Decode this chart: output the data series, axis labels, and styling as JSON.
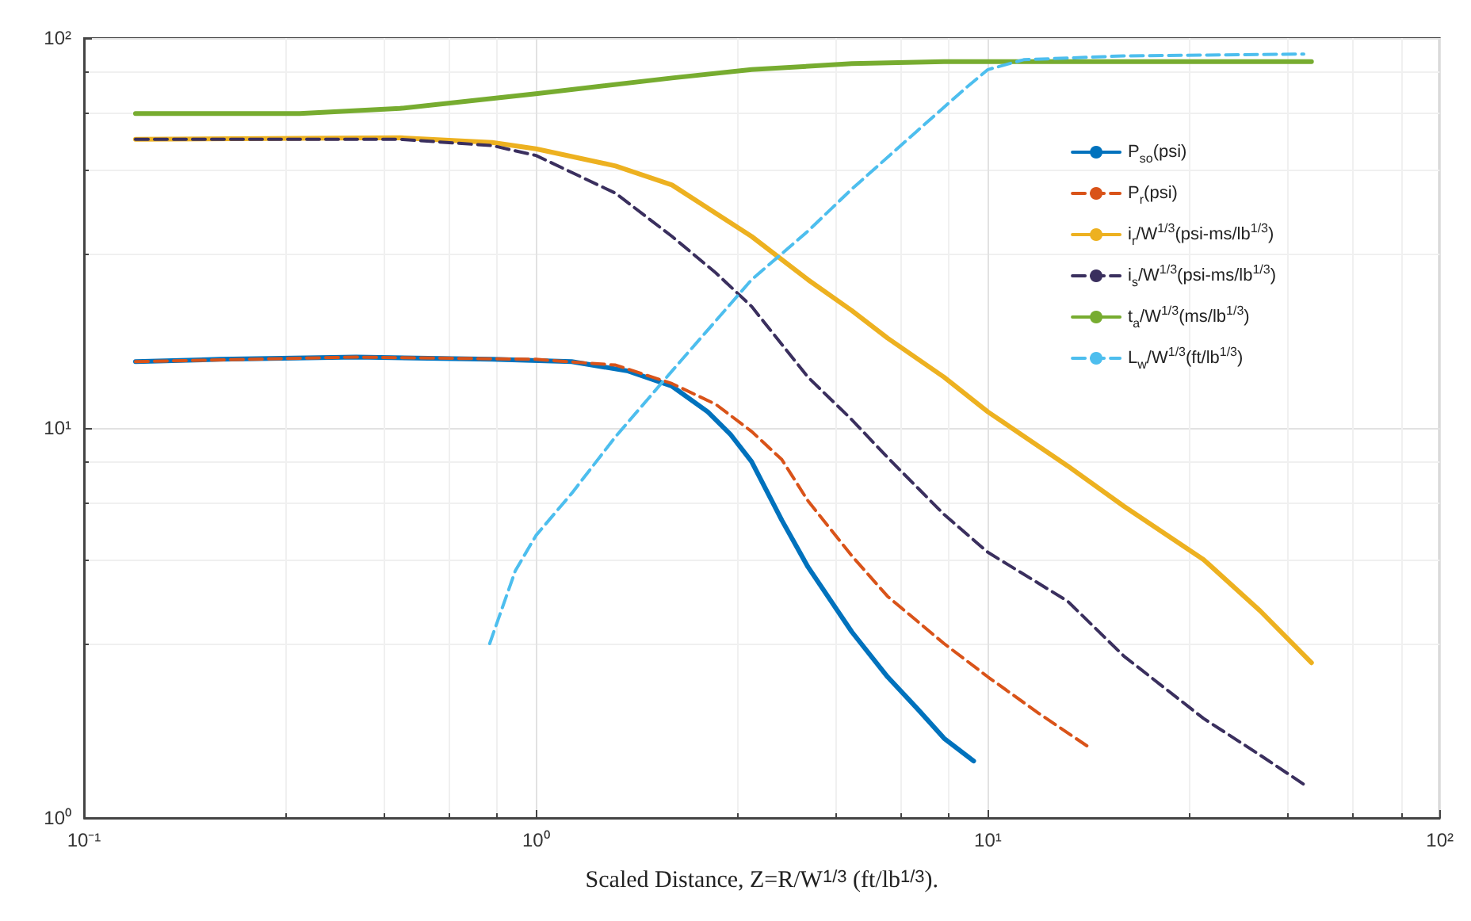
{
  "chart_data": {
    "type": "line",
    "xlabel": "Scaled Distance, Z=R/W$^{1/3}$ (ft/lb$^{1/3}$).",
    "log": "xy",
    "grid": true,
    "legend": "top right",
    "marker": "none",
    "xlim": [
      0.1,
      100
    ],
    "ylim": [
      1,
      100
    ],
    "xticks": [
      {
        "value": 0.1,
        "label": "10⁻¹"
      },
      {
        "value": 1,
        "label": "10⁰"
      },
      {
        "value": 10,
        "label": "10¹"
      },
      {
        "value": 100,
        "label": "10²"
      }
    ],
    "yticks": [
      {
        "value": 1,
        "label": "10⁰"
      },
      {
        "value": 10,
        "label": "10¹"
      },
      {
        "value": 100,
        "label": "10²"
      }
    ],
    "series": [
      {
        "name": "P$_{so}$(psi)",
        "color": "#0072bd",
        "line_style": "solid",
        "x": [
          0.13,
          0.2,
          0.4,
          0.8,
          1.2,
          1.6,
          2,
          2.4,
          2.7,
          3,
          3.5,
          4,
          5,
          6,
          7,
          8,
          9.3
        ],
        "values": [
          14.8,
          15,
          15.2,
          15,
          14.8,
          14,
          12.8,
          11,
          9.6,
          8.2,
          5.8,
          4.4,
          3,
          2.3,
          1.9,
          1.6,
          1.4
        ]
      },
      {
        "name": "P$_{r}$(psi)",
        "color": "#d95319",
        "line_style": "dashed",
        "x": [
          0.13,
          0.4,
          1,
          1.5,
          2,
          2.5,
          3,
          3.5,
          4,
          5,
          6,
          8,
          10,
          13,
          17
        ],
        "values": [
          14.8,
          15.2,
          15,
          14.5,
          13,
          11.5,
          9.8,
          8.3,
          6.5,
          4.7,
          3.7,
          2.8,
          2.3,
          1.85,
          1.5
        ]
      },
      {
        "name": "i$_{r}$/W$^{1/3}$(psi-ms/lb$^{1/3}$)",
        "color": "#edb120",
        "line_style": "solid",
        "x": [
          0.13,
          0.5,
          0.8,
          1,
          1.5,
          2,
          3,
          4,
          5,
          6,
          8,
          10,
          15,
          20,
          30,
          40,
          52
        ],
        "values": [
          55,
          55.5,
          54,
          52,
          47,
          42,
          31,
          24,
          20,
          17,
          13.5,
          11,
          8,
          6.3,
          4.6,
          3.4,
          2.5
        ]
      },
      {
        "name": "i$_{s}$/W$^{1/3}$(psi-ms/lb$^{1/3}$)",
        "color": "#3a2f5e",
        "line_style": "dashed",
        "x": [
          0.13,
          0.5,
          0.8,
          1,
          1.5,
          2,
          2.5,
          3,
          4,
          5,
          6,
          8,
          10,
          15,
          20,
          30,
          40,
          50
        ],
        "values": [
          55,
          55,
          53,
          50,
          40,
          31,
          25,
          20.5,
          13.5,
          10.5,
          8.4,
          6,
          4.8,
          3.6,
          2.6,
          1.8,
          1.45,
          1.22
        ]
      },
      {
        "name": "t$_{a}$/W$^{1/3}$(ms/lb$^{1/3}$)",
        "color": "#77ac30",
        "line_style": "solid",
        "x": [
          0.13,
          0.3,
          0.5,
          0.8,
          1,
          2,
          3,
          5,
          8,
          15,
          52
        ],
        "values": [
          64,
          64,
          66,
          70,
          72,
          79,
          83,
          86,
          87,
          87,
          87
        ]
      },
      {
        "name": "L$_{w}$/W$^{1/3}$(ft/lb$^{1/3}$)",
        "color": "#4dbeee",
        "line_style": "dashed",
        "x": [
          0.79,
          0.9,
          1,
          1.2,
          1.5,
          2,
          3,
          4,
          5,
          7,
          9,
          10,
          12,
          20,
          50
        ],
        "values": [
          2.8,
          4.3,
          5.3,
          6.8,
          9.5,
          14,
          24,
          32,
          41,
          58,
          75,
          83,
          88,
          90,
          91
        ]
      }
    ]
  }
}
